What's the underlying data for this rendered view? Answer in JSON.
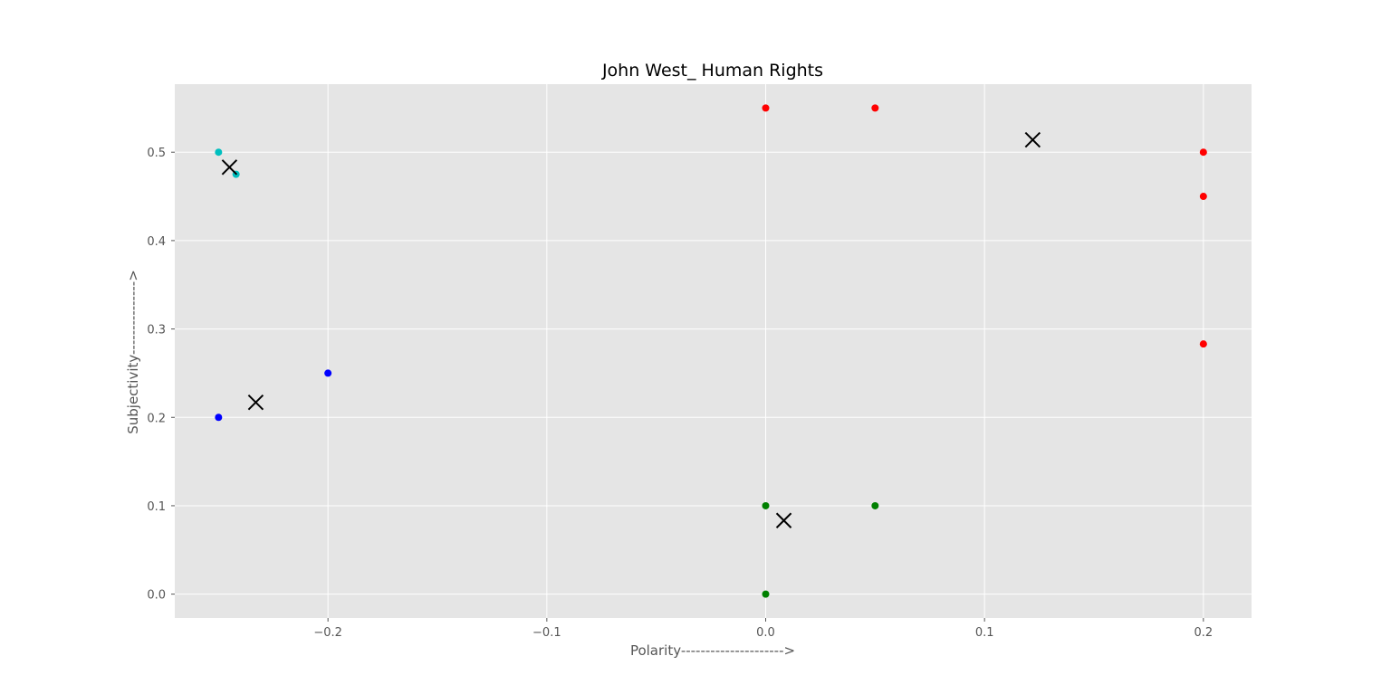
{
  "chart_data": {
    "type": "scatter",
    "title": "John West_ Human Rights",
    "xlabel": "Polarity--------------------->",
    "ylabel": "Subjectivity--------------->",
    "xlim": [
      -0.27,
      0.222
    ],
    "ylim": [
      -0.027,
      0.577
    ],
    "xticks": [
      -0.2,
      -0.1,
      0.0,
      0.1,
      0.2
    ],
    "xtick_labels": [
      "−0.2",
      "−0.1",
      "0.0",
      "0.1",
      "0.2"
    ],
    "yticks": [
      0.0,
      0.1,
      0.2,
      0.3,
      0.4,
      0.5
    ],
    "ytick_labels": [
      "0.0",
      "0.1",
      "0.2",
      "0.3",
      "0.4",
      "0.5"
    ],
    "grid": true,
    "background": "#e5e5e5",
    "series": [
      {
        "color": "#ff0000",
        "marker": "circle",
        "x": [
          0.0,
          0.05,
          0.2,
          0.2,
          0.2
        ],
        "y": [
          0.55,
          0.55,
          0.5,
          0.45,
          0.283
        ]
      },
      {
        "color": "#00bfbf",
        "marker": "circle",
        "x": [
          -0.25,
          -0.242
        ],
        "y": [
          0.5,
          0.475
        ]
      },
      {
        "color": "#0000ff",
        "marker": "circle",
        "x": [
          -0.25,
          -0.2
        ],
        "y": [
          0.2,
          0.25
        ]
      },
      {
        "color": "#008000",
        "marker": "circle",
        "x": [
          0.0,
          0.05,
          0.0
        ],
        "y": [
          0.1,
          0.1,
          0.0
        ]
      },
      {
        "color": "#000000",
        "marker": "x",
        "x": [
          0.122,
          -0.245,
          -0.233,
          0.0083
        ],
        "y": [
          0.514,
          0.483,
          0.217,
          0.0833
        ]
      }
    ]
  }
}
